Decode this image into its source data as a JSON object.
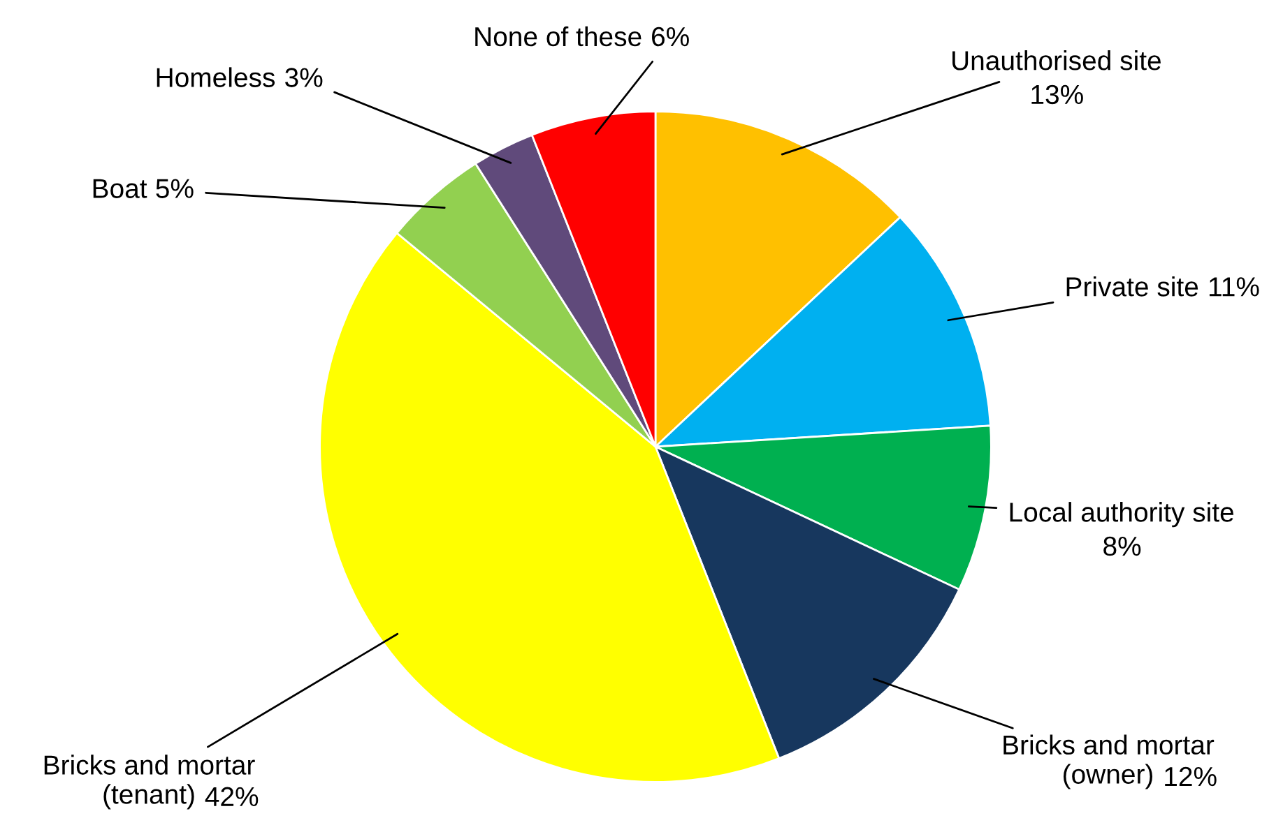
{
  "chart_data": {
    "type": "pie",
    "categories": [
      "Unauthorised site",
      "Private site",
      "Local authority site",
      "Bricks and mortar (owner)",
      "Bricks and mortar (tenant)",
      "Boat",
      "Homeless",
      "None of these"
    ],
    "values": [
      13,
      11,
      8,
      12,
      42,
      5,
      3,
      6
    ],
    "colors": [
      "#ffc000",
      "#00b0f0",
      "#00b050",
      "#17375e",
      "#ffff00",
      "#92d050",
      "#604a7b",
      "#ff0000"
    ],
    "value_labels": [
      "13%",
      "11%",
      "8%",
      "12%",
      "42%",
      "5%",
      "3%",
      "6%"
    ],
    "legend": false
  }
}
